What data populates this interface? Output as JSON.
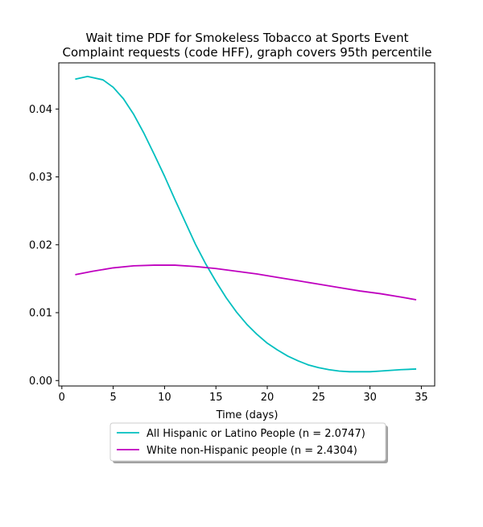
{
  "chart_data": {
    "type": "line",
    "title_lines": [
      "Wait time PDF for Smokeless Tobacco at Sports Event",
      "Complaint  requests (code HFF), graph covers 95th percentile"
    ],
    "xlabel": "Time (days)",
    "ylabel": "",
    "xlim": [
      -0.3,
      36.3
    ],
    "ylim": [
      -0.0008,
      0.0468
    ],
    "x_ticks": [
      0,
      5,
      10,
      15,
      20,
      25,
      30,
      35
    ],
    "y_ticks": [
      0.0,
      0.01,
      0.02,
      0.03,
      0.04
    ],
    "y_tick_labels": [
      "0.00",
      "0.01",
      "0.02",
      "0.03",
      "0.04"
    ],
    "grid": false,
    "legend_position": "below plot, centered",
    "series": [
      {
        "name": "All Hispanic or Latino People (n = 2.0747)",
        "color": "#00bfbf",
        "x": [
          1.3,
          2.5,
          4.0,
          5.0,
          6.0,
          7.0,
          8.0,
          9.0,
          10.0,
          11.0,
          12.0,
          13.0,
          14.0,
          15.0,
          16.0,
          17.0,
          18.0,
          19.0,
          20.0,
          21.0,
          22.0,
          23.0,
          24.0,
          25.0,
          26.0,
          27.0,
          28.0,
          29.0,
          30.0,
          31.0,
          32.0,
          33.0,
          34.5
        ],
        "y": [
          0.0444,
          0.0448,
          0.0443,
          0.0432,
          0.0415,
          0.0392,
          0.0364,
          0.0333,
          0.0301,
          0.0267,
          0.0234,
          0.0201,
          0.0172,
          0.0146,
          0.0122,
          0.0101,
          0.0083,
          0.0068,
          0.0055,
          0.0045,
          0.0036,
          0.0029,
          0.0023,
          0.0019,
          0.0016,
          0.0014,
          0.0013,
          0.0013,
          0.0013,
          0.0014,
          0.0015,
          0.0016,
          0.0017
        ]
      },
      {
        "name": "White non-Hispanic people (n = 2.4304)",
        "color": "#bf00bf",
        "x": [
          1.3,
          3.0,
          5.0,
          7.0,
          9.0,
          11.0,
          13.0,
          15.0,
          17.0,
          19.0,
          21.0,
          23.0,
          25.0,
          27.0,
          29.0,
          31.0,
          33.0,
          34.5
        ],
        "y": [
          0.0156,
          0.0161,
          0.0166,
          0.0169,
          0.017,
          0.017,
          0.0168,
          0.0165,
          0.0161,
          0.0157,
          0.0152,
          0.0147,
          0.0142,
          0.0137,
          0.0132,
          0.0128,
          0.0123,
          0.0119
        ]
      }
    ]
  }
}
